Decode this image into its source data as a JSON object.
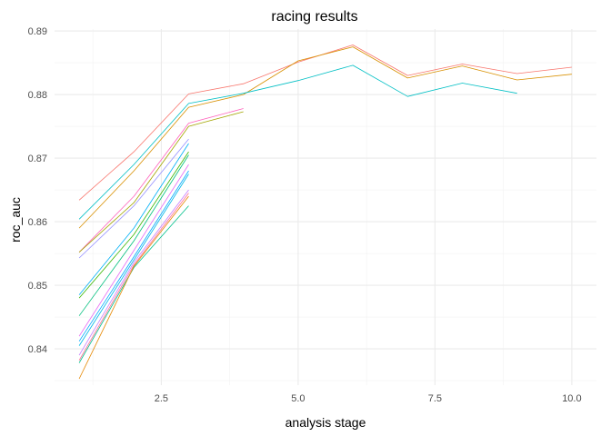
{
  "chart_data": {
    "type": "line",
    "title": "racing results",
    "xlabel": "analysis stage",
    "ylabel": "roc_auc",
    "xlim": [
      0.55,
      10.45
    ],
    "ylim": [
      0.8343,
      0.8903
    ],
    "x_ticks": [
      2.5,
      5.0,
      7.5,
      10.0
    ],
    "x_tick_labels": [
      "2.5",
      "5.0",
      "7.5",
      "10.0"
    ],
    "y_ticks": [
      0.84,
      0.85,
      0.86,
      0.87,
      0.88,
      0.89
    ],
    "y_tick_labels": [
      "0.84",
      "0.85",
      "0.86",
      "0.87",
      "0.88",
      "0.89"
    ],
    "grid": true,
    "legend": "none",
    "series": [
      {
        "color": "#F8766D",
        "x": [
          1,
          2,
          3,
          4,
          5,
          6,
          7,
          8,
          9,
          10
        ],
        "y": [
          0.8634,
          0.871,
          0.8801,
          0.8817,
          0.8851,
          0.8878,
          0.883,
          0.8848,
          0.8833,
          0.8843
        ]
      },
      {
        "color": "#D89000",
        "x": [
          1,
          2,
          3,
          4,
          5,
          6,
          7,
          8,
          9,
          10
        ],
        "y": [
          0.859,
          0.868,
          0.878,
          0.88,
          0.8853,
          0.8875,
          0.8826,
          0.8845,
          0.8823,
          0.8832
        ]
      },
      {
        "color": "#00BFC4",
        "x": [
          1,
          2,
          3,
          4,
          5,
          6,
          7,
          8,
          9
        ],
        "y": [
          0.8604,
          0.869,
          0.8786,
          0.8802,
          0.8822,
          0.8846,
          0.8797,
          0.8818,
          0.8802
        ]
      },
      {
        "color": "#FF62BC",
        "x": [
          1,
          2,
          3,
          4
        ],
        "y": [
          0.8552,
          0.864,
          0.8755,
          0.8778
        ]
      },
      {
        "color": "#A3A500",
        "x": [
          1,
          2,
          3,
          4
        ],
        "y": [
          0.8552,
          0.863,
          0.875,
          0.8773
        ]
      },
      {
        "color": "#9590FF",
        "x": [
          1,
          2,
          3
        ],
        "y": [
          0.8543,
          0.8625,
          0.873
        ]
      },
      {
        "color": "#00B0F6",
        "x": [
          1,
          2,
          3
        ],
        "y": [
          0.8485,
          0.859,
          0.8723
        ]
      },
      {
        "color": "#39B600",
        "x": [
          1,
          2,
          3
        ],
        "y": [
          0.848,
          0.858,
          0.871
        ]
      },
      {
        "color": "#00BF7D",
        "x": [
          1,
          2,
          3
        ],
        "y": [
          0.8452,
          0.857,
          0.8705
        ]
      },
      {
        "color": "#E76BF3",
        "x": [
          1,
          2,
          3
        ],
        "y": [
          0.842,
          0.8555,
          0.869
        ]
      },
      {
        "color": "#00A9FF",
        "x": [
          1,
          2,
          3
        ],
        "y": [
          0.8412,
          0.8545,
          0.868
        ]
      },
      {
        "color": "#00B8E7",
        "x": [
          1,
          2,
          3
        ],
        "y": [
          0.8405,
          0.854,
          0.8675
        ]
      },
      {
        "color": "#C77CFF",
        "x": [
          1,
          2,
          3
        ],
        "y": [
          0.839,
          0.8536,
          0.865
        ]
      },
      {
        "color": "#FF6C91",
        "x": [
          1,
          2,
          3
        ],
        "y": [
          0.8382,
          0.8532,
          0.8645
        ]
      },
      {
        "color": "#00C08B",
        "x": [
          1,
          2,
          3
        ],
        "y": [
          0.8378,
          0.8528,
          0.8625
        ]
      },
      {
        "color": "#E58700",
        "x": [
          1,
          2,
          3
        ],
        "y": [
          0.8353,
          0.853,
          0.864
        ]
      }
    ]
  }
}
